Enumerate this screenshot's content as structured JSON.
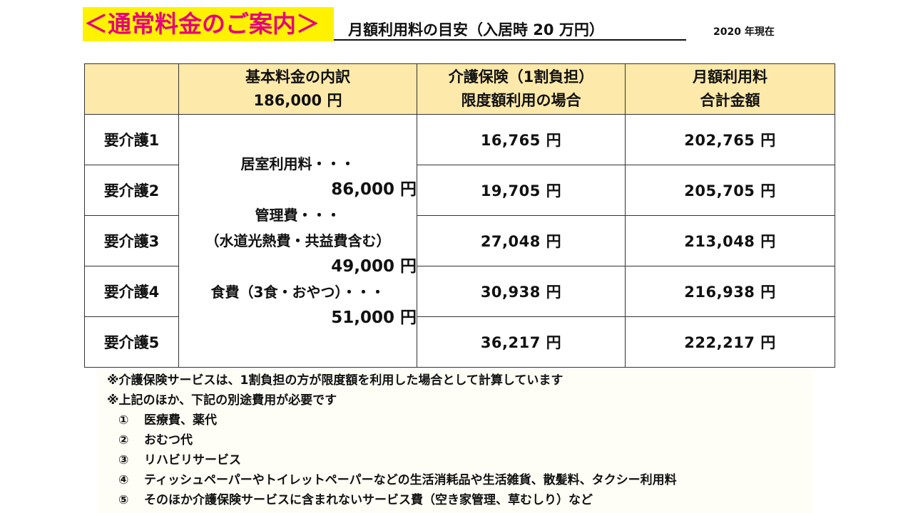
{
  "header": {
    "main_title": "＜通常料金のご案内＞",
    "sub_title": "月額利用料の目安（入居時 20 万円）",
    "date_note": "2020 年現在"
  },
  "table": {
    "headers": {
      "blank": "",
      "breakdown_line1": "基本料金の内訳",
      "breakdown_line2": "186,000 円",
      "insurance_line1": "介護保険（1割負担）",
      "insurance_line2": "限度額利用の場合",
      "total_line1": "月額利用料",
      "total_line2": "合計金額"
    },
    "breakdown": {
      "room_label": "居室利用料・・・",
      "room_amount": "86,000 円",
      "mgmt_label": "管理費・・・",
      "mgmt_note": "（水道光熱費・共益費含む）",
      "mgmt_amount": "49,000 円",
      "food_label": "食費（3食・おやつ）・・・",
      "food_amount": "51,000 円"
    },
    "rows": [
      {
        "level": "要介護1",
        "insurance": "16,765 円",
        "total": "202,765 円"
      },
      {
        "level": "要介護2",
        "insurance": "19,705 円",
        "total": "205,705 円"
      },
      {
        "level": "要介護3",
        "insurance": "27,048 円",
        "total": "213,048 円"
      },
      {
        "level": "要介護4",
        "insurance": "30,938 円",
        "total": "216,938 円"
      },
      {
        "level": "要介護5",
        "insurance": "36,217 円",
        "total": "222,217 円"
      }
    ]
  },
  "notes": {
    "note1": "※介護保険サービスは、1割負担の方が限度額を利用した場合として計算しています",
    "note2": "※上記のほか、下記の別途費用が必要です",
    "items": [
      {
        "num": "①",
        "text": "医療費、薬代"
      },
      {
        "num": "②",
        "text": "おむつ代"
      },
      {
        "num": "③",
        "text": "リハビリサービス"
      },
      {
        "num": "④",
        "text": "ティッシュペーパーやトイレットペーパーなどの生活消耗品や生活雑貨、散髪料、タクシー利用料"
      },
      {
        "num": "⑤",
        "text": "そのほか介護保険サービスに含まれないサービス費（空き家管理、草むしり）など"
      }
    ]
  },
  "colors": {
    "title_highlight": "#fff200",
    "title_text": "#e6007e",
    "header_fill": "#fde9a9"
  }
}
